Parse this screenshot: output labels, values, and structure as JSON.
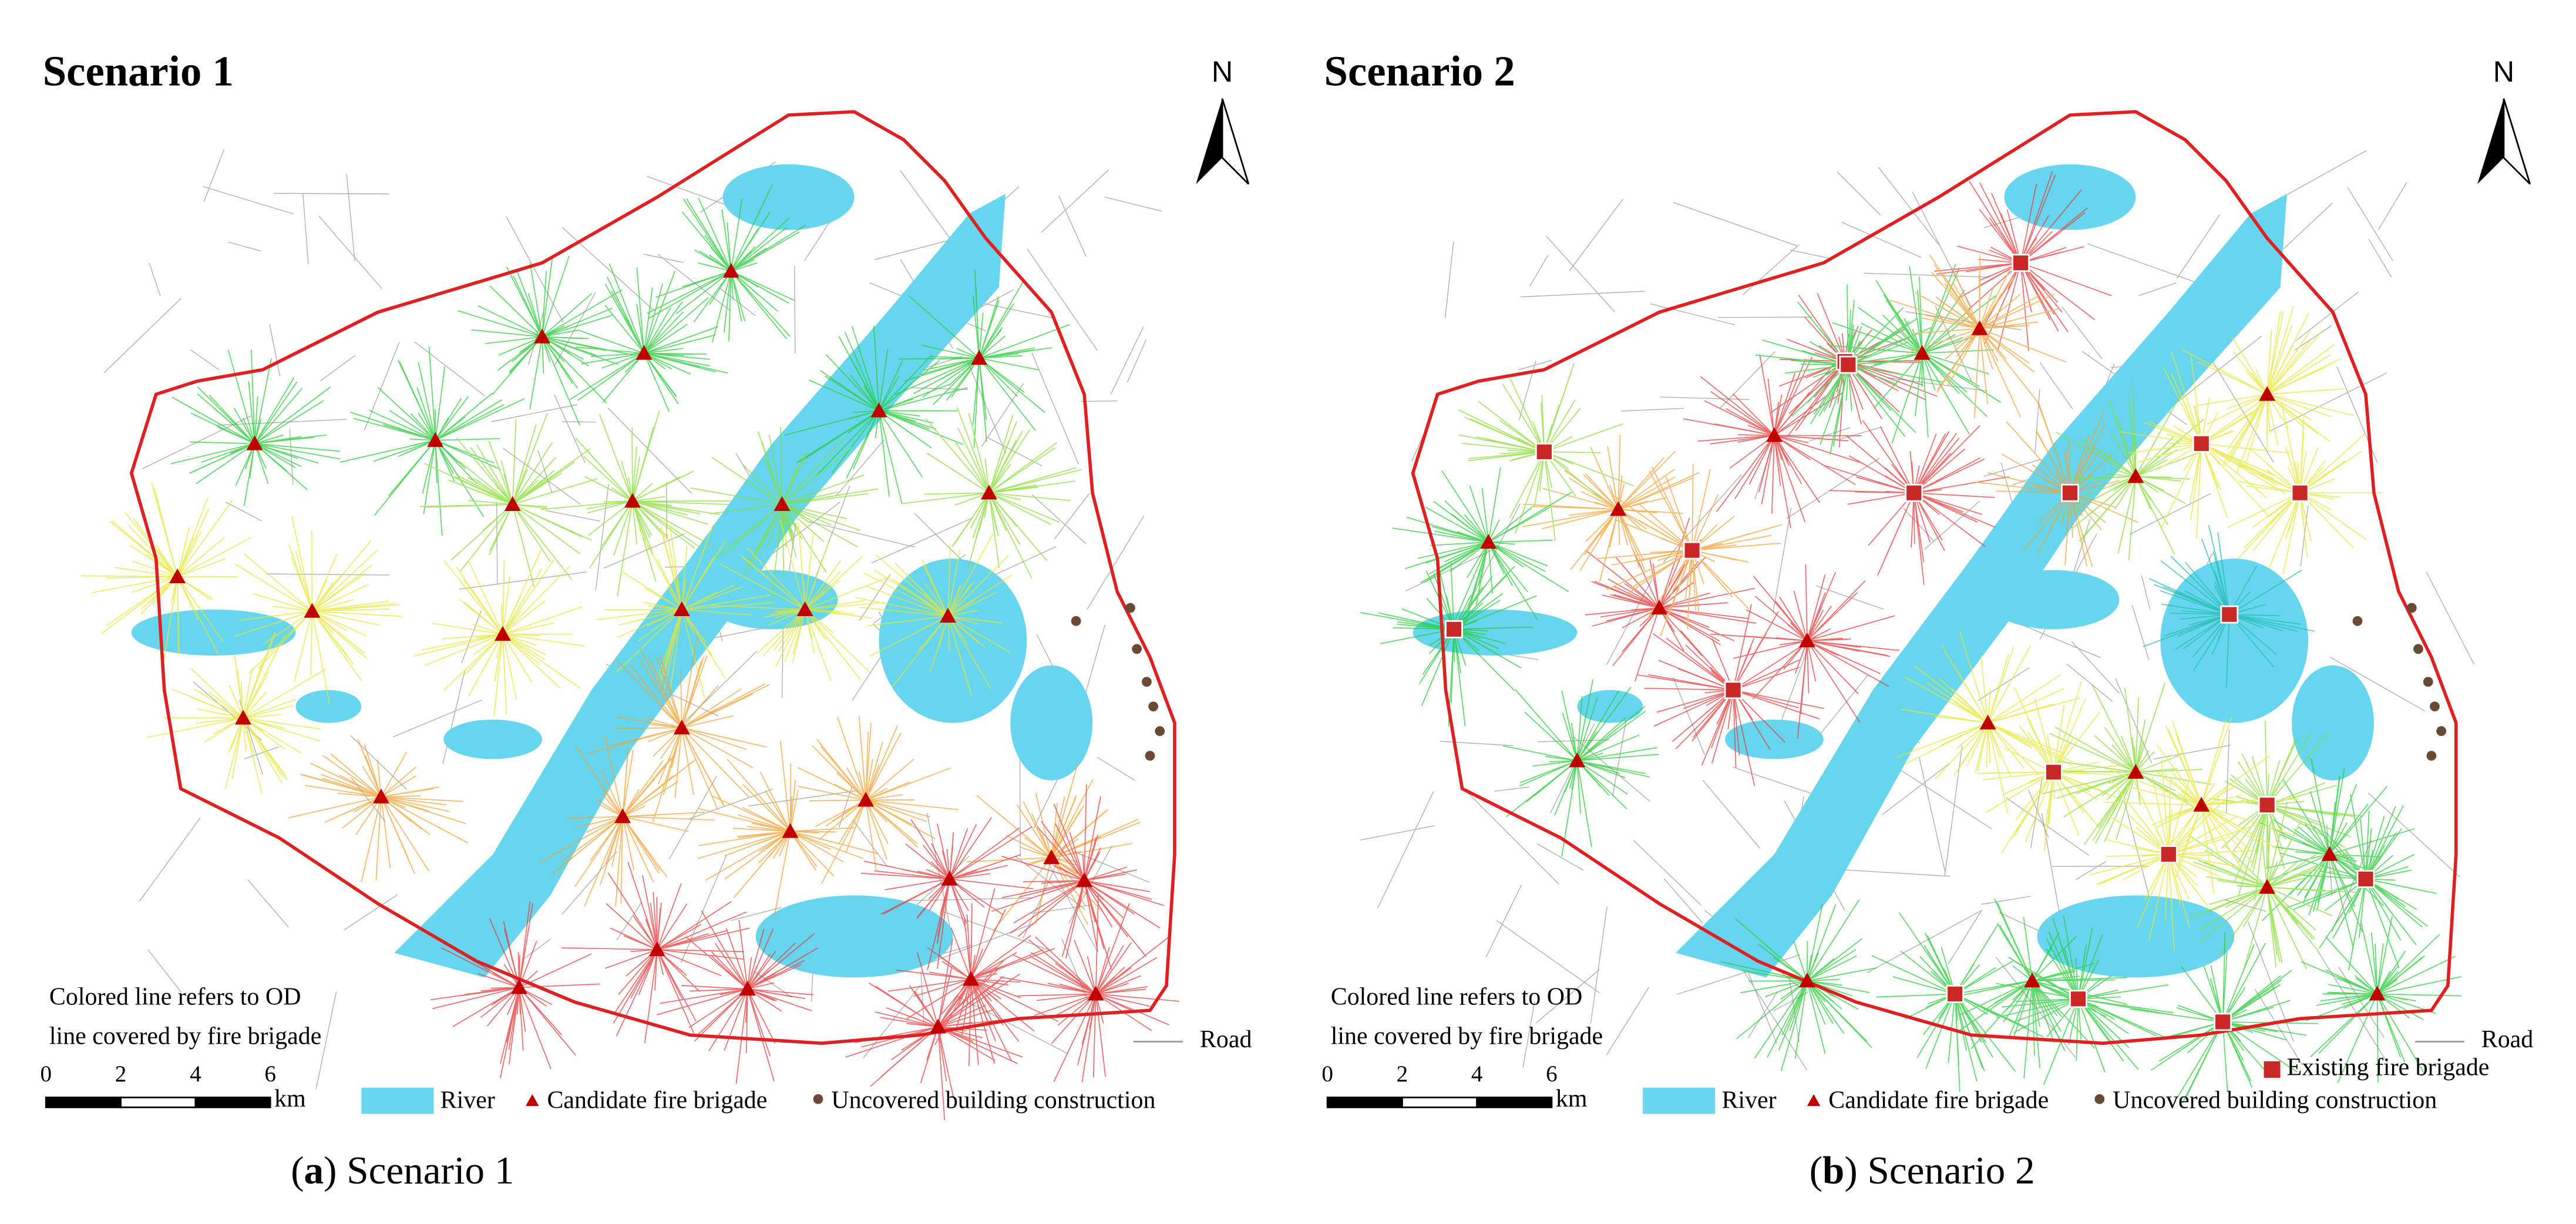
{
  "panels": [
    {
      "title": "Scenario 1",
      "north": "N",
      "note": [
        "Colored line refers to OD",
        "line covered by fire brigade"
      ],
      "scale_bar": {
        "ticks": [
          0,
          2,
          4,
          6
        ],
        "unit": "km"
      },
      "legend": {
        "road": "Road",
        "river": "River",
        "candidate": "Candidate fire brigade",
        "uncovered": "Uncovered building construction"
      },
      "caption": [
        "(",
        "a",
        ") Scenario 1"
      ]
    },
    {
      "title": "Scenario 2",
      "north": "N",
      "note": [
        "Colored line refers to OD",
        "line covered by fire brigade"
      ],
      "scale_bar": {
        "ticks": [
          0,
          2,
          4,
          6
        ],
        "unit": "km"
      },
      "legend": {
        "existing": "Existing fire brigade",
        "road": "Road",
        "river": "River",
        "candidate": "Candidate fire brigade",
        "uncovered": "Uncovered building construction"
      },
      "caption": [
        "(",
        "b",
        ") Scenario 2"
      ]
    }
  ]
}
